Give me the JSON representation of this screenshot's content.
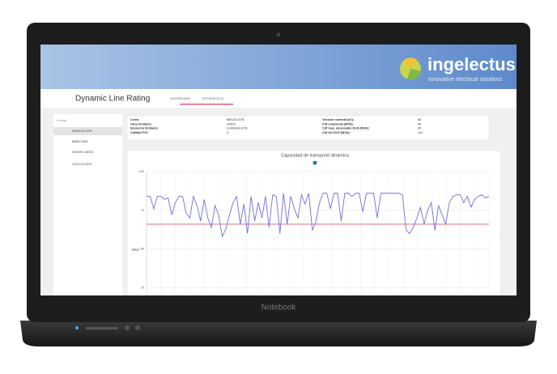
{
  "header": {
    "title": "Dynamic Line Rating",
    "tabs": [
      "DASHBOARD",
      "ESTADÍSTICA"
    ],
    "logo": "ingelectus",
    "tagline": "Innovative electrical solutions"
  },
  "sidebar": {
    "title": "Líneas",
    "items": [
      "066EGA-GTB",
      "86BZ-DAN",
      "40SAFO-MGN",
      "220LCO-DEG"
    ]
  },
  "info": {
    "rows": [
      [
        "Línea:",
        "66EGA-GTB",
        "Tensión nominal (kV):",
        "66"
      ],
      [
        "Vano limitante:",
        "16309",
        "Cdf estacional (MVA):",
        "66"
      ],
      [
        "Elemento limitante:",
        "G-66EGA-GTB",
        "Cdf máx. alcanzable DLR (MVA):",
        "45"
      ],
      [
        "Calidad F/G:",
        "2",
        "Cdf del DLR (MVA):",
        "114"
      ]
    ]
  },
  "device": {
    "label": "Notebook"
  },
  "chart_data": {
    "type": "line",
    "title": "Capacidad de transporte dinámica",
    "y_label": "MVA",
    "ylim": [
      0,
      100
    ],
    "yticks": [
      25,
      50,
      75,
      100
    ],
    "grid": true,
    "threshold": 66,
    "threshold_color": "#e05a6a",
    "series": [
      {
        "color": "#6f6fe0",
        "values": [
          84,
          84,
          76,
          84,
          84,
          82,
          83,
          72,
          80,
          84,
          84,
          73,
          70,
          84,
          78,
          68,
          82,
          70,
          64,
          78,
          72,
          58,
          63,
          72,
          80,
          84,
          66,
          79,
          60,
          84,
          68,
          80,
          70,
          84,
          64,
          85,
          84,
          60,
          86,
          66,
          84,
          76,
          70,
          85,
          79,
          86,
          62,
          68,
          80,
          86,
          86,
          76,
          86,
          86,
          68,
          86,
          86,
          84,
          86,
          86,
          74,
          86,
          86,
          86,
          70,
          86,
          86,
          86,
          86,
          86,
          86,
          85,
          62,
          60,
          64,
          70,
          77,
          66,
          75,
          80,
          62,
          78,
          72,
          66,
          80,
          84,
          85,
          85,
          80,
          84,
          77,
          82,
          84,
          85,
          83,
          84
        ]
      }
    ]
  }
}
